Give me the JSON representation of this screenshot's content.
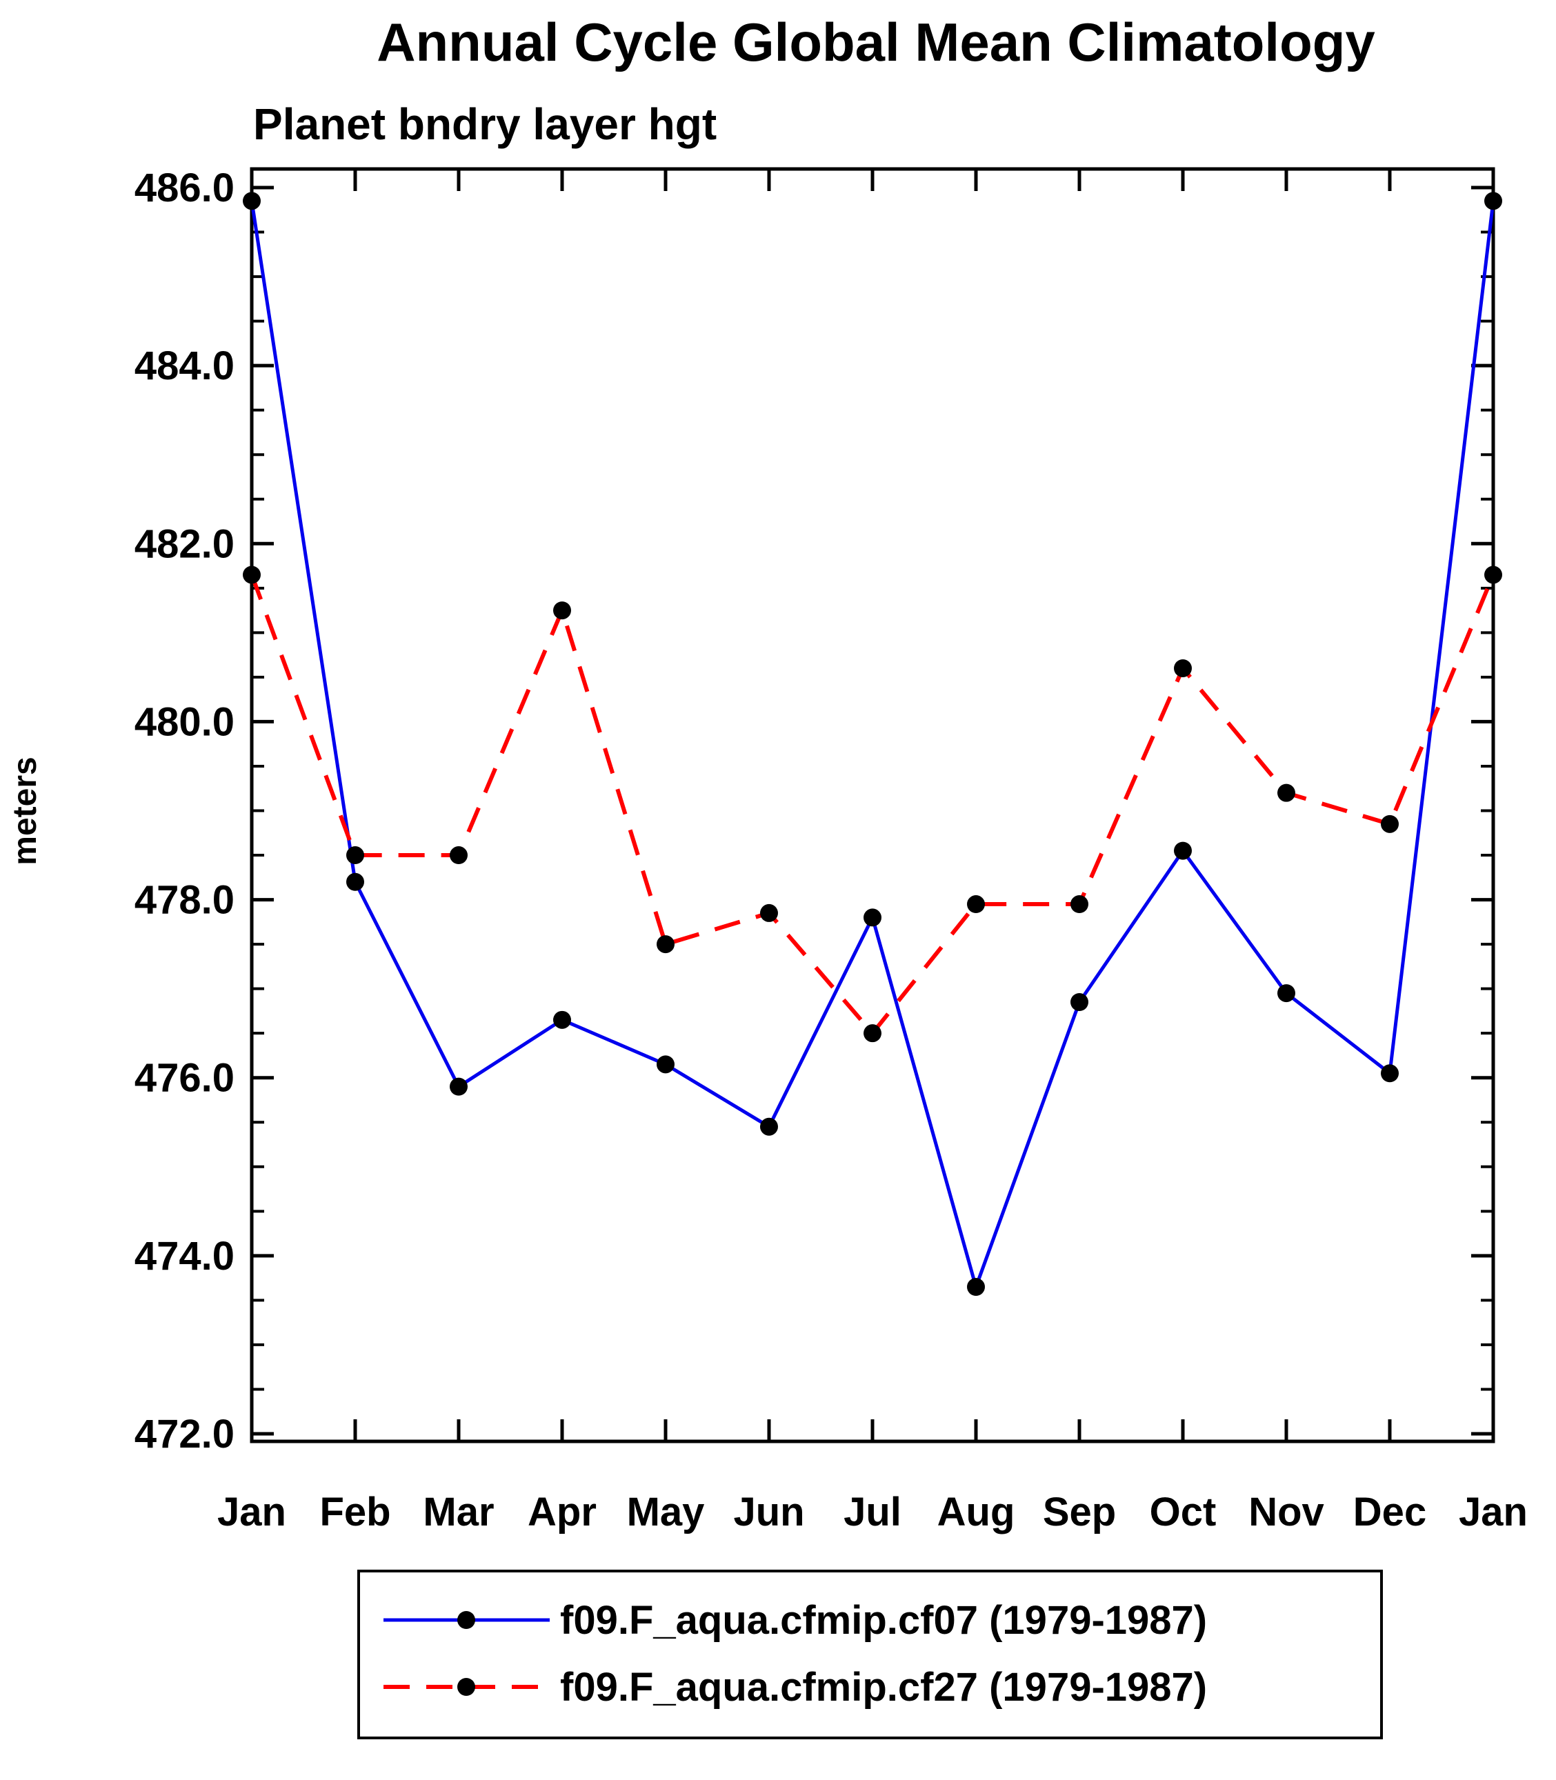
{
  "chart_data": {
    "type": "line",
    "title": "Annual Cycle Global Mean Climatology",
    "subtitle": "Planet bndry layer hgt",
    "ylabel": "meters",
    "categories": [
      "Jan",
      "Feb",
      "Mar",
      "Apr",
      "May",
      "Jun",
      "Jul",
      "Aug",
      "Sep",
      "Oct",
      "Nov",
      "Dec",
      "Jan"
    ],
    "ylim": [
      472.0,
      486.0
    ],
    "yticks": [
      472.0,
      474.0,
      476.0,
      478.0,
      480.0,
      482.0,
      484.0,
      486.0
    ],
    "ytick_minor_step": 0.5,
    "grid": false,
    "legend_position": "bottom",
    "marker": "filled-circle",
    "marker_color": "#000000",
    "series": [
      {
        "name": "f09.F_aqua.cfmip.cf07 (1979-1987)",
        "color": "#0000ee",
        "style": "solid",
        "values": [
          485.85,
          478.2,
          475.9,
          476.65,
          476.15,
          475.45,
          477.8,
          473.65,
          476.85,
          478.55,
          476.95,
          476.05,
          485.85
        ]
      },
      {
        "name": "f09.F_aqua.cfmip.cf27 (1979-1987)",
        "color": "#ff0000",
        "style": "dashed",
        "values": [
          481.65,
          478.5,
          478.5,
          481.25,
          477.5,
          477.85,
          476.5,
          477.95,
          477.95,
          480.6,
          479.2,
          478.85,
          481.65
        ]
      }
    ]
  }
}
